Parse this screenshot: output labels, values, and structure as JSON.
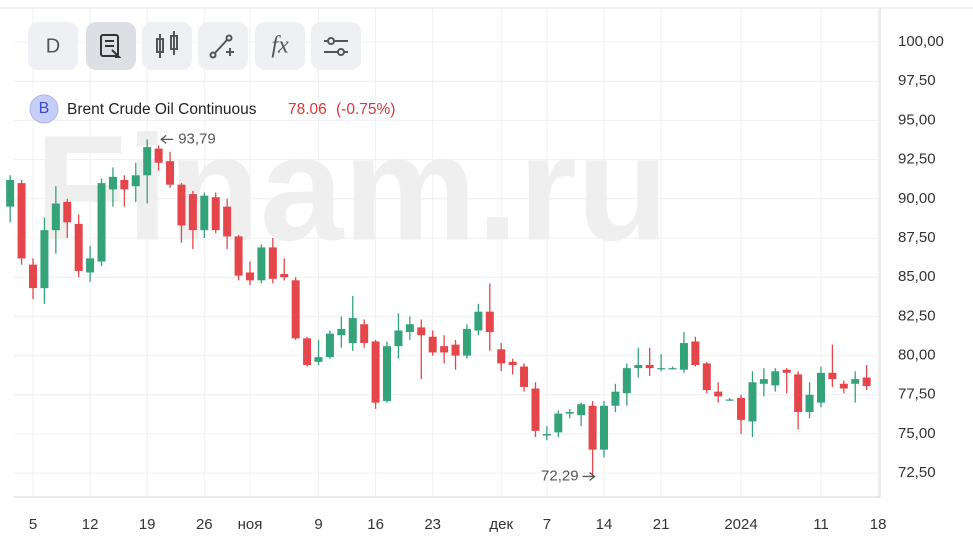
{
  "toolbar": {
    "interval": "D",
    "indicators": "fx"
  },
  "watermark": "Finam.ru",
  "chart_data": {
    "type": "candlestick",
    "title": "Brent Crude Oil Continuous",
    "badge": "B",
    "price": "78.06",
    "change": "(-0.75%)",
    "categories": [
      null,
      null,
      "5",
      null,
      null,
      null,
      null,
      "12",
      null,
      null,
      null,
      null,
      "19",
      null,
      null,
      null,
      null,
      "26",
      null,
      null,
      null,
      "ноя",
      null,
      null,
      null,
      null,
      null,
      "9",
      null,
      null,
      null,
      null,
      "16",
      null,
      null,
      null,
      null,
      "23",
      null,
      null,
      null,
      null,
      null,
      "дек",
      null,
      null,
      null,
      "7",
      null,
      null,
      null,
      null,
      "14",
      null,
      null,
      null,
      null,
      "21",
      null,
      null,
      null,
      null,
      null,
      null,
      "2024",
      null,
      null,
      null,
      null,
      null,
      null,
      "11",
      null,
      null,
      null,
      null,
      "18"
    ],
    "series": [
      {
        "up_color": "#34a37a",
        "down_color": "#e4464b",
        "open": [
          89.5,
          91.0,
          85.8,
          84.3,
          88.0,
          89.8,
          88.4,
          85.3,
          86.0,
          90.6,
          91.2,
          90.8,
          91.5,
          93.2,
          92.4,
          90.9,
          90.3,
          88.0,
          90.1,
          89.5,
          87.6,
          85.3,
          84.8,
          86.9,
          85.2,
          84.8,
          81.1,
          79.6,
          79.9,
          81.3,
          80.8,
          82.0,
          80.9,
          77.1,
          80.6,
          81.5,
          81.8,
          81.2,
          80.6,
          80.7,
          80.0,
          81.6,
          82.8,
          80.4,
          79.6,
          79.3,
          77.9,
          74.9,
          75.1,
          76.3,
          76.2,
          76.8,
          74.0,
          76.8,
          77.6,
          79.2,
          79.4,
          79.2,
          79.2,
          79.1,
          80.9,
          79.5,
          77.7,
          77.2,
          77.3,
          75.8,
          78.2,
          78.1,
          79.1,
          78.8,
          76.4,
          77.0,
          78.9,
          78.2,
          78.2,
          78.6,
          null
        ],
        "high": [
          91.5,
          91.2,
          86.2,
          88.8,
          90.8,
          90.0,
          89.0,
          87.0,
          91.3,
          92.0,
          91.5,
          92.3,
          93.79,
          93.4,
          93.0,
          91.0,
          90.5,
          90.4,
          90.4,
          90.0,
          87.7,
          86.0,
          87.1,
          87.5,
          86.2,
          85.0,
          81.2,
          81.0,
          81.6,
          82.5,
          83.8,
          82.3,
          81.0,
          80.9,
          82.7,
          82.5,
          82.3,
          81.6,
          81.3,
          81.0,
          82.0,
          83.3,
          84.6,
          80.8,
          79.8,
          79.5,
          78.3,
          75.5,
          76.5,
          76.6,
          77.0,
          77.1,
          77.1,
          78.2,
          79.5,
          80.5,
          80.5,
          80.1,
          79.3,
          81.5,
          81.2,
          79.6,
          78.3,
          77.3,
          77.5,
          79.0,
          79.2,
          79.2,
          79.2,
          79.0,
          78.3,
          79.3,
          80.7,
          78.4,
          79.0,
          79.4,
          null
        ],
        "low": [
          88.5,
          85.8,
          83.6,
          83.3,
          86.5,
          87.5,
          85.0,
          84.7,
          85.7,
          89.5,
          89.5,
          89.8,
          89.7,
          91.8,
          90.7,
          87.2,
          86.8,
          87.5,
          87.8,
          86.8,
          84.8,
          84.5,
          84.6,
          84.6,
          84.8,
          81.0,
          79.3,
          79.4,
          79.8,
          80.5,
          80.3,
          80.5,
          76.6,
          77.0,
          79.8,
          81.0,
          78.5,
          80.0,
          79.5,
          79.1,
          79.8,
          81.3,
          80.3,
          79.0,
          78.8,
          77.7,
          74.8,
          74.6,
          74.8,
          76.0,
          75.5,
          72.29,
          73.5,
          76.4,
          76.8,
          78.6,
          78.7,
          79.0,
          79.1,
          78.9,
          79.3,
          77.6,
          77.0,
          77.1,
          75.0,
          74.8,
          77.4,
          77.7,
          77.6,
          75.3,
          76.0,
          76.7,
          78.0,
          77.6,
          77.0,
          77.8,
          null
        ],
        "close": [
          91.2,
          86.2,
          84.3,
          88.0,
          89.7,
          88.5,
          85.4,
          86.2,
          91.0,
          91.4,
          90.6,
          91.5,
          93.3,
          92.3,
          90.9,
          88.3,
          88.0,
          90.2,
          88.0,
          87.6,
          85.1,
          84.8,
          86.9,
          84.9,
          85.0,
          81.1,
          79.4,
          79.9,
          81.4,
          81.7,
          82.4,
          80.8,
          77.0,
          80.6,
          81.6,
          82.0,
          81.3,
          80.2,
          80.2,
          80.0,
          81.7,
          82.8,
          81.5,
          79.5,
          79.4,
          78.0,
          75.2,
          75.0,
          76.3,
          76.4,
          76.9,
          74.0,
          76.8,
          77.7,
          79.2,
          79.4,
          79.2,
          79.2,
          79.2,
          80.8,
          79.4,
          77.8,
          77.4,
          77.2,
          75.9,
          78.3,
          78.5,
          79.0,
          78.9,
          76.4,
          77.5,
          78.9,
          78.5,
          77.9,
          78.5,
          78.06,
          null
        ]
      }
    ],
    "annotations": [
      {
        "value": 93.79,
        "label": "93,79"
      },
      {
        "value": 72.29,
        "label": "72,29"
      }
    ],
    "ylim": [
      70.98,
      102.17
    ],
    "yticks": [
      {
        "value": 72.5,
        "label": "72,50"
      },
      {
        "value": 75,
        "label": "75,00"
      },
      {
        "value": 77.5,
        "label": "77,50"
      },
      {
        "value": 80,
        "label": "80,00"
      },
      {
        "value": 82.5,
        "label": "82,50"
      },
      {
        "value": 85,
        "label": "85,00"
      },
      {
        "value": 87.5,
        "label": "87,50"
      },
      {
        "value": 90,
        "label": "90,00"
      },
      {
        "value": 92.5,
        "label": "92,50"
      },
      {
        "value": 95,
        "label": "95,00"
      },
      {
        "value": 97.5,
        "label": "97,50"
      },
      {
        "value": 100,
        "label": "100,00"
      }
    ],
    "grid": true
  }
}
